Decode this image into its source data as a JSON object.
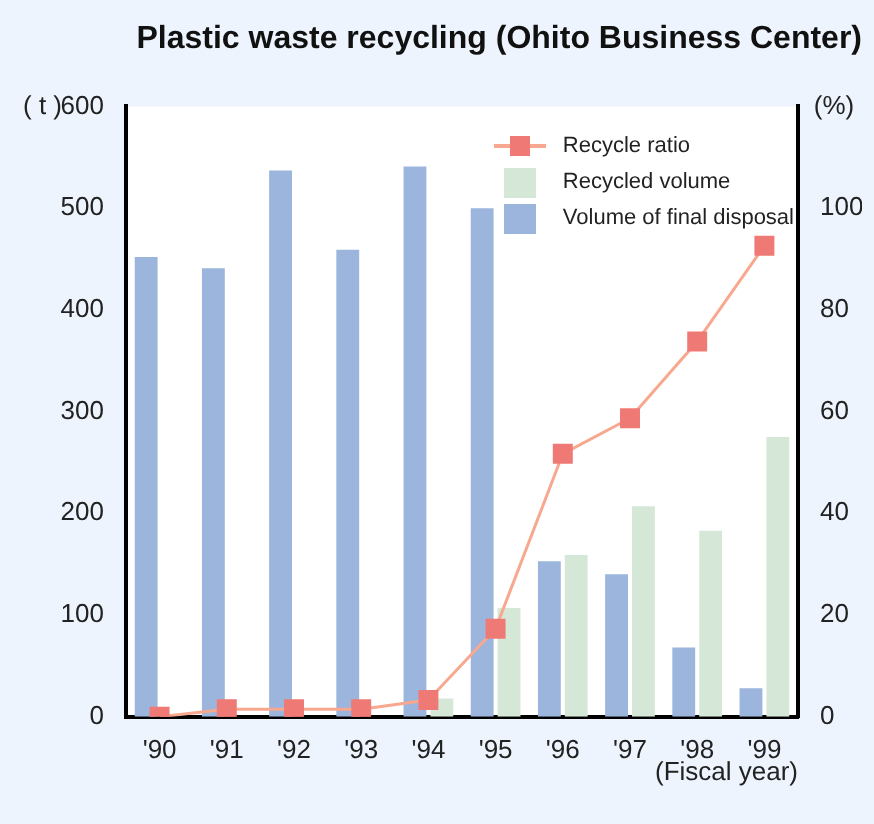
{
  "chart_data": {
    "type": "bar",
    "title": "Plastic waste recycling (Ohito Business Center)",
    "xlabel": "(Fiscal year)",
    "ylabel": "( t )",
    "y2label": "(%)",
    "categories": [
      "'90",
      "'91",
      "'92",
      "'93",
      "'94",
      "'95",
      "'96",
      "'97",
      "'98",
      "'99"
    ],
    "series": [
      {
        "name": "Volume of final disposal",
        "color": "#9bb5dc",
        "values": [
          452,
          441,
          537,
          459,
          541,
          500,
          153,
          140,
          68,
          28
        ]
      },
      {
        "name": "Recycled volume",
        "color": "#d5e8d8",
        "values": [
          null,
          null,
          null,
          null,
          18,
          107,
          159,
          207,
          183,
          275
        ]
      },
      {
        "name": "Recycle ratio",
        "type": "line",
        "axis": "y2",
        "color": "#ef7a75",
        "values": [
          0,
          1.5,
          1.5,
          1.5,
          3.3,
          17.3,
          51.7,
          58.7,
          73.8,
          92.6
        ]
      }
    ],
    "ylim": [
      0,
      600
    ],
    "yticks": [
      0,
      100,
      200,
      300,
      400,
      500,
      600
    ],
    "y2lim": [
      0,
      120
    ],
    "y2ticks": [
      0,
      20,
      40,
      60,
      80,
      100
    ],
    "grid": false,
    "legend": "top right",
    "marker": "square",
    "line_style": "solid"
  }
}
